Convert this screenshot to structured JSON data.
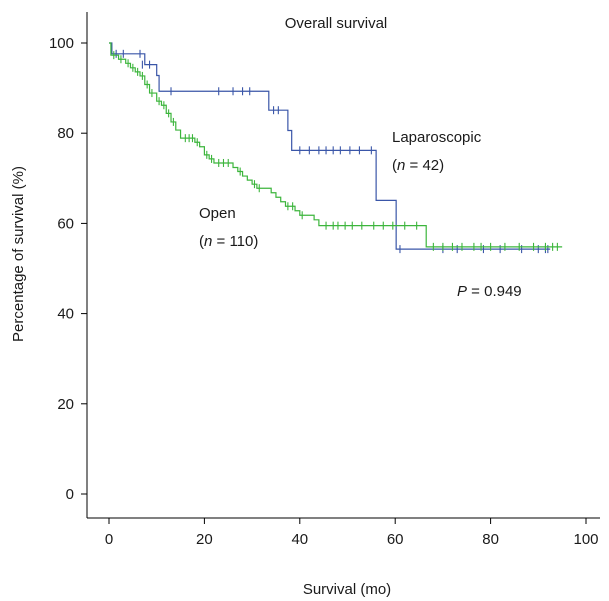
{
  "chart_data": {
    "type": "line",
    "subtype": "kaplan-meier",
    "title": "Overall survival",
    "xlabel": "Survival (mo)",
    "ylabel": "Percentage of survival (%)",
    "xlim": [
      0,
      100
    ],
    "ylim": [
      0,
      100
    ],
    "x_ticks": [
      0,
      20,
      40,
      60,
      80,
      100
    ],
    "y_ticks": [
      0,
      20,
      40,
      60,
      80,
      100
    ],
    "grid": false,
    "legend": "none",
    "annotations": {
      "p_value": {
        "label": "P",
        "text": " = 0.949"
      }
    },
    "series": [
      {
        "name": "Laparoscopic",
        "n_label": "n",
        "n_text": " = 42",
        "color": "#3a56a8",
        "steps": [
          [
            0,
            100
          ],
          [
            0.6,
            97.6
          ],
          [
            7.5,
            95.2
          ],
          [
            10,
            92.8
          ],
          [
            10.5,
            89.3
          ],
          [
            33.5,
            85.1
          ],
          [
            37.5,
            80.6
          ],
          [
            38.3,
            76.2
          ],
          [
            56,
            65.1
          ],
          [
            60.2,
            54.3
          ],
          [
            92.5,
            54.3
          ]
        ],
        "censored": [
          [
            1.5,
            97.6
          ],
          [
            3,
            97.6
          ],
          [
            6.5,
            97.6
          ],
          [
            7,
            95.2
          ],
          [
            8.5,
            95.2
          ],
          [
            13,
            89.3
          ],
          [
            23,
            89.3
          ],
          [
            26,
            89.3
          ],
          [
            28,
            89.3
          ],
          [
            29.5,
            89.3
          ],
          [
            34.5,
            85.1
          ],
          [
            35.5,
            85.1
          ],
          [
            40,
            76.2
          ],
          [
            42,
            76.2
          ],
          [
            44,
            76.2
          ],
          [
            45.5,
            76.2
          ],
          [
            47,
            76.2
          ],
          [
            48.5,
            76.2
          ],
          [
            50.5,
            76.2
          ],
          [
            52.5,
            76.2
          ],
          [
            55,
            76.2
          ],
          [
            61,
            54.3
          ],
          [
            70,
            54.3
          ],
          [
            73,
            54.3
          ],
          [
            78.5,
            54.3
          ],
          [
            82,
            54.3
          ],
          [
            86.5,
            54.3
          ],
          [
            90,
            54.3
          ],
          [
            91.5,
            54.3
          ],
          [
            92,
            54.3
          ]
        ]
      },
      {
        "name": "Open",
        "n_label": "n",
        "n_text": " = 110",
        "color": "#3cb53c",
        "steps": [
          [
            0,
            100
          ],
          [
            0.4,
            97.3
          ],
          [
            2,
            96.4
          ],
          [
            3.5,
            95.5
          ],
          [
            4.5,
            94.5
          ],
          [
            5.5,
            93.6
          ],
          [
            6.5,
            92.7
          ],
          [
            7.5,
            90.8
          ],
          [
            8.5,
            88.9
          ],
          [
            10,
            87.1
          ],
          [
            11,
            86.2
          ],
          [
            12,
            84.4
          ],
          [
            13,
            82.5
          ],
          [
            14,
            80.7
          ],
          [
            15,
            78.9
          ],
          [
            18,
            78
          ],
          [
            19,
            77
          ],
          [
            20,
            75.2
          ],
          [
            21,
            74.3
          ],
          [
            22,
            73.4
          ],
          [
            26,
            72.4
          ],
          [
            27,
            71.5
          ],
          [
            28,
            70.5
          ],
          [
            29,
            69.6
          ],
          [
            30,
            68.7
          ],
          [
            31,
            67.8
          ],
          [
            34,
            66.8
          ],
          [
            35,
            65.8
          ],
          [
            36,
            64.8
          ],
          [
            37,
            63.8
          ],
          [
            39,
            62.8
          ],
          [
            40,
            61.8
          ],
          [
            43,
            60.8
          ],
          [
            44,
            59.5
          ],
          [
            61,
            59.5
          ],
          [
            66.5,
            54.8
          ],
          [
            95,
            54.8
          ]
        ],
        "censored": [
          [
            1,
            97.3
          ],
          [
            2.5,
            96.4
          ],
          [
            4,
            95.5
          ],
          [
            5,
            94.5
          ],
          [
            6,
            93.6
          ],
          [
            7,
            92.7
          ],
          [
            8,
            90.8
          ],
          [
            9,
            88.9
          ],
          [
            10.5,
            87.1
          ],
          [
            11.5,
            86.2
          ],
          [
            12.5,
            84.4
          ],
          [
            13.5,
            82.5
          ],
          [
            16,
            78.9
          ],
          [
            16.8,
            78.9
          ],
          [
            17.5,
            78.9
          ],
          [
            18.5,
            78
          ],
          [
            20.5,
            75.2
          ],
          [
            21.5,
            74.3
          ],
          [
            23,
            73.4
          ],
          [
            24,
            73.4
          ],
          [
            25,
            73.4
          ],
          [
            27.5,
            71.5
          ],
          [
            30.5,
            68.7
          ],
          [
            31.5,
            67.8
          ],
          [
            37.5,
            63.8
          ],
          [
            38.5,
            63.8
          ],
          [
            40.5,
            61.8
          ],
          [
            45.5,
            59.5
          ],
          [
            47,
            59.5
          ],
          [
            48,
            59.5
          ],
          [
            49.5,
            59.5
          ],
          [
            51,
            59.5
          ],
          [
            53,
            59.5
          ],
          [
            55.5,
            59.5
          ],
          [
            57.5,
            59.5
          ],
          [
            59.5,
            59.5
          ],
          [
            62,
            59.5
          ],
          [
            64.5,
            59.5
          ],
          [
            68,
            54.8
          ],
          [
            70,
            54.8
          ],
          [
            72,
            54.8
          ],
          [
            74,
            54.8
          ],
          [
            76.5,
            54.8
          ],
          [
            78,
            54.8
          ],
          [
            80,
            54.8
          ],
          [
            83,
            54.8
          ],
          [
            86,
            54.8
          ],
          [
            89,
            54.8
          ],
          [
            91.5,
            54.8
          ],
          [
            93,
            54.8
          ],
          [
            94,
            54.8
          ]
        ]
      }
    ]
  }
}
